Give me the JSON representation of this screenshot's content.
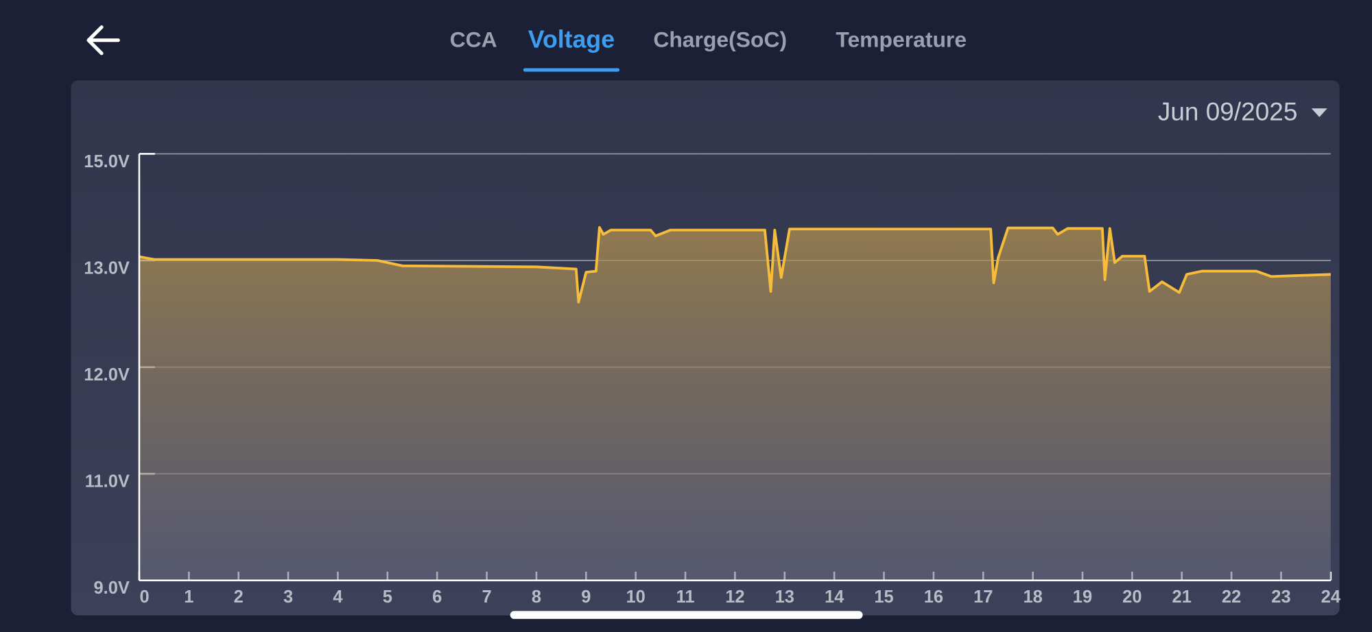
{
  "tabs": [
    "CCA",
    "Voltage",
    "Charge(SoC)",
    "Temperature"
  ],
  "selected_tab": 1,
  "date": "Jun 09/2025",
  "chart_data": {
    "type": "area",
    "series": [
      {
        "color": "#f7bd3a",
        "x": [
          0,
          0.3,
          4,
          4.8,
          5.3,
          8.0,
          8.8,
          8.85,
          9.0,
          9.2,
          9.27,
          9.35,
          9.5,
          10.3,
          10.4,
          10.7,
          12.6,
          12.72,
          12.8,
          12.93,
          13.1,
          17.15,
          17.21,
          17.3,
          17.5,
          18.4,
          18.5,
          18.7,
          19.4,
          19.45,
          19.55,
          19.65,
          19.8,
          20.25,
          20.35,
          20.6,
          20.95,
          21.1,
          21.4,
          22.5,
          22.8,
          23.4,
          24
        ],
        "values": [
          13.07,
          13.02,
          13.02,
          13.0,
          12.95,
          12.94,
          12.92,
          12.61,
          12.89,
          12.9,
          13.62,
          13.49,
          13.57,
          13.57,
          13.46,
          13.57,
          13.57,
          12.71,
          13.57,
          12.84,
          13.59,
          13.59,
          12.79,
          13.05,
          13.61,
          13.61,
          13.49,
          13.6,
          13.6,
          12.82,
          13.6,
          12.98,
          13.08,
          13.08,
          12.71,
          12.8,
          12.7,
          12.87,
          12.9,
          12.9,
          12.85,
          12.86,
          12.87
        ]
      }
    ],
    "xlim": [
      0,
      24
    ],
    "xticks": [
      0,
      1,
      2,
      3,
      4,
      5,
      6,
      7,
      8,
      9,
      10,
      11,
      12,
      13,
      14,
      15,
      16,
      17,
      18,
      19,
      20,
      21,
      22,
      23,
      24
    ],
    "ylim": [
      9,
      15
    ],
    "yticks": [
      {
        "value": 9,
        "label": "9.0V"
      },
      {
        "value": 11,
        "label": "11.0V"
      },
      {
        "value": 12,
        "label": "12.0V"
      },
      {
        "value": 13,
        "label": "13.0V"
      },
      {
        "value": 15,
        "label": "15.0V"
      }
    ],
    "grid": true
  }
}
